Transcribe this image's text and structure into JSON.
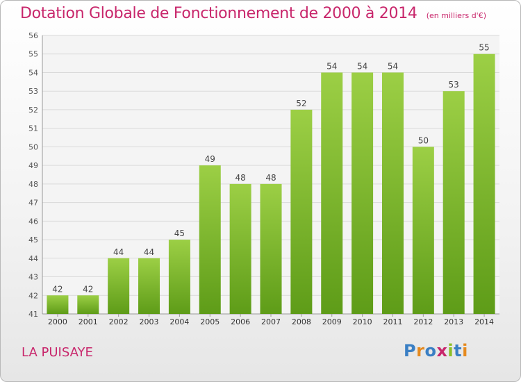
{
  "header": {
    "title": "Dotation Globale de Fonctionnement de 2000 à 2014",
    "unit": "(en milliers d'€)"
  },
  "footer": {
    "city": "LA PUISAYE",
    "logo": "Proxiti"
  },
  "colors": {
    "accent": "#c8266b",
    "bar_top": "#9ccf45",
    "bar_bottom": "#5e9c18",
    "logo_letters": [
      "#3a7fc4",
      "#e58a1f",
      "#3a7fc4",
      "#c8266b",
      "#8cbf26",
      "#3a7fc4",
      "#e58a1f"
    ]
  },
  "chart_data": {
    "type": "bar",
    "categories": [
      "2000",
      "2001",
      "2002",
      "2003",
      "2004",
      "2005",
      "2006",
      "2007",
      "2008",
      "2009",
      "2010",
      "2011",
      "2012",
      "2013",
      "2014"
    ],
    "values": [
      42,
      42,
      44,
      44,
      45,
      49,
      48,
      48,
      52,
      54,
      54,
      54,
      50,
      53,
      55
    ],
    "ylim": [
      41,
      56
    ],
    "yticks": [
      41,
      42,
      43,
      44,
      45,
      46,
      47,
      48,
      49,
      50,
      51,
      52,
      53,
      54,
      55,
      56
    ],
    "grid": true,
    "data_labels": true
  }
}
